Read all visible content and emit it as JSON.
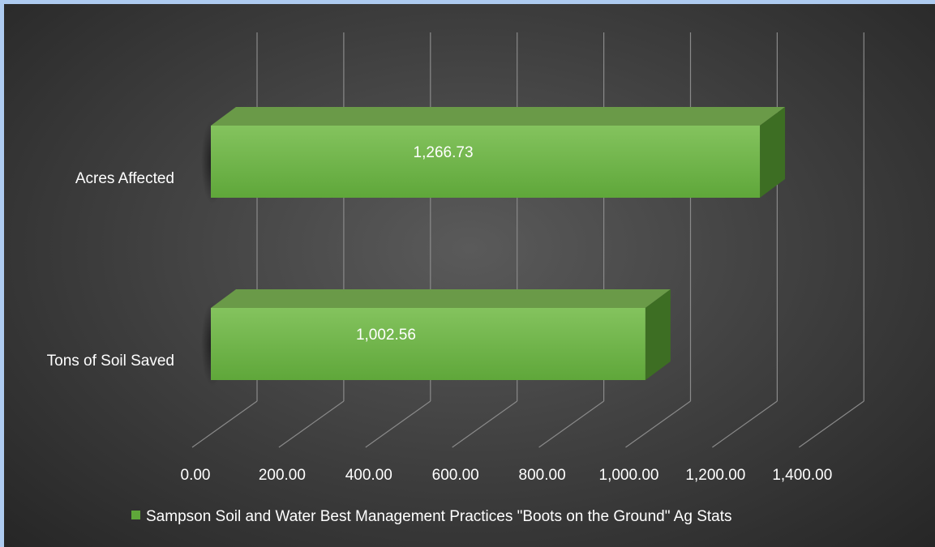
{
  "colors": {
    "bar_front_top": "#84c35e",
    "bar_front_bottom": "#5fa73a",
    "bar_top_face": "#6a9a48",
    "bar_side_face": "#3d6e23",
    "gridline": "#8a8a8a",
    "text": "#ffffff"
  },
  "chart_data": {
    "type": "bar",
    "orientation": "horizontal",
    "three_d": true,
    "categories": [
      "Acres Affected",
      "Tons of Soil Saved"
    ],
    "series": [
      {
        "name": "Sampson Soil and Water Best Management Practices \"Boots on the Ground\" Ag Stats",
        "values": [
          1266.73,
          1002.56
        ],
        "data_labels": [
          "1,266.73",
          "1,002.56"
        ]
      }
    ],
    "xlim": [
      0,
      1400
    ],
    "x_ticks": [
      0,
      200,
      400,
      600,
      800,
      1000,
      1200,
      1400
    ],
    "x_tick_labels": [
      "0.00",
      "200.00",
      "400.00",
      "600.00",
      "800.00",
      "1,000.00",
      "1,200.00",
      "1,400.00"
    ],
    "grid": true,
    "legend_position": "bottom",
    "title": "",
    "xlabel": "",
    "ylabel": ""
  }
}
